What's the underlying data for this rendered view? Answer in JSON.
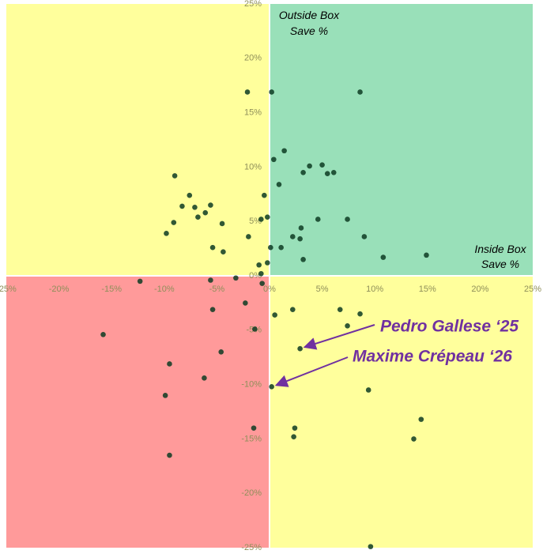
{
  "chart_data": {
    "type": "scatter",
    "quadrant_colors": {
      "top_left": "#ffff9c",
      "top_right": "#99e0b9",
      "bottom_left": "#ff9a9a",
      "bottom_right": "#ffff9c"
    },
    "point_color": "#0d3b22",
    "annotation_color": "#7030a0",
    "y_label": [
      "Outside Box",
      "Save %"
    ],
    "x_label": [
      "Inside Box",
      "Save %"
    ],
    "annotations": [
      {
        "text": "Pedro Gallese ‘25",
        "x": 2.9,
        "y": -6.7
      },
      {
        "text": "Maxime Crépeau ‘26",
        "x": 0.2,
        "y": -10.2
      }
    ],
    "xlim": [
      -25,
      25
    ],
    "ylim": [
      -25,
      25
    ],
    "xticks": [
      {
        "value": -25,
        "label": "-25%"
      },
      {
        "value": -20,
        "label": "-20%"
      },
      {
        "value": -15,
        "label": "-15%"
      },
      {
        "value": -10,
        "label": "-10%"
      },
      {
        "value": -5,
        "label": "-5%"
      },
      {
        "value": 0,
        "label": "0%"
      },
      {
        "value": 5,
        "label": "5%"
      },
      {
        "value": 10,
        "label": "10%"
      },
      {
        "value": 15,
        "label": "15%"
      },
      {
        "value": 20,
        "label": "20%"
      },
      {
        "value": 25,
        "label": "25%"
      }
    ],
    "yticks": [
      {
        "value": -25,
        "label": "-25%"
      },
      {
        "value": -20,
        "label": "-20%"
      },
      {
        "value": -15,
        "label": "-15%"
      },
      {
        "value": -10,
        "label": "-10%"
      },
      {
        "value": -5,
        "label": "-5%"
      },
      {
        "value": 0,
        "label": "0%"
      },
      {
        "value": 5,
        "label": "5%"
      },
      {
        "value": 10,
        "label": "10%"
      },
      {
        "value": 15,
        "label": "15%"
      },
      {
        "value": 20,
        "label": "20%"
      },
      {
        "value": 25,
        "label": "25%"
      }
    ],
    "x": [
      -2.1,
      0.2,
      8.6,
      1.4,
      0.4,
      -9.0,
      3.8,
      5.0,
      3.2,
      5.5,
      6.1,
      0.9,
      -7.6,
      -0.5,
      -8.3,
      -7.1,
      -5.6,
      -6.1,
      -6.8,
      -9.1,
      -4.5,
      -0.8,
      -0.2,
      4.6,
      7.4,
      3.0,
      -9.8,
      -2.0,
      2.2,
      2.9,
      9.0,
      -5.4,
      0.1,
      1.1,
      -4.4,
      3.2,
      10.8,
      14.9,
      -1.0,
      -0.2,
      -0.8,
      -12.3,
      -5.6,
      -3.2,
      -0.7,
      -2.3,
      -5.4,
      0.5,
      2.2,
      6.7,
      8.6,
      7.4,
      -1.4,
      -15.8,
      2.9,
      -4.6,
      -9.5,
      -6.2,
      0.2,
      9.4,
      -9.9,
      14.4,
      2.4,
      -1.5,
      2.3,
      13.7,
      -9.5,
      9.6
    ],
    "values": [
      16.9,
      16.9,
      16.9,
      11.5,
      10.7,
      9.2,
      10.1,
      10.2,
      9.5,
      9.4,
      9.5,
      8.4,
      7.4,
      7.4,
      6.4,
      6.3,
      6.5,
      5.8,
      5.4,
      4.9,
      4.8,
      5.2,
      5.4,
      5.2,
      5.2,
      4.4,
      3.9,
      3.6,
      3.6,
      3.4,
      3.6,
      2.6,
      2.6,
      2.6,
      2.2,
      1.5,
      1.7,
      1.9,
      1.0,
      1.2,
      0.2,
      -0.5,
      -0.4,
      -0.2,
      -0.7,
      -2.5,
      -3.1,
      -3.6,
      -3.1,
      -3.1,
      -3.5,
      -4.6,
      -4.9,
      -5.4,
      -6.7,
      -7.0,
      -8.1,
      -9.4,
      -10.2,
      -10.5,
      -11.0,
      -13.2,
      -14.0,
      -14.0,
      -14.8,
      -15.0,
      -16.5,
      -24.9
    ]
  }
}
